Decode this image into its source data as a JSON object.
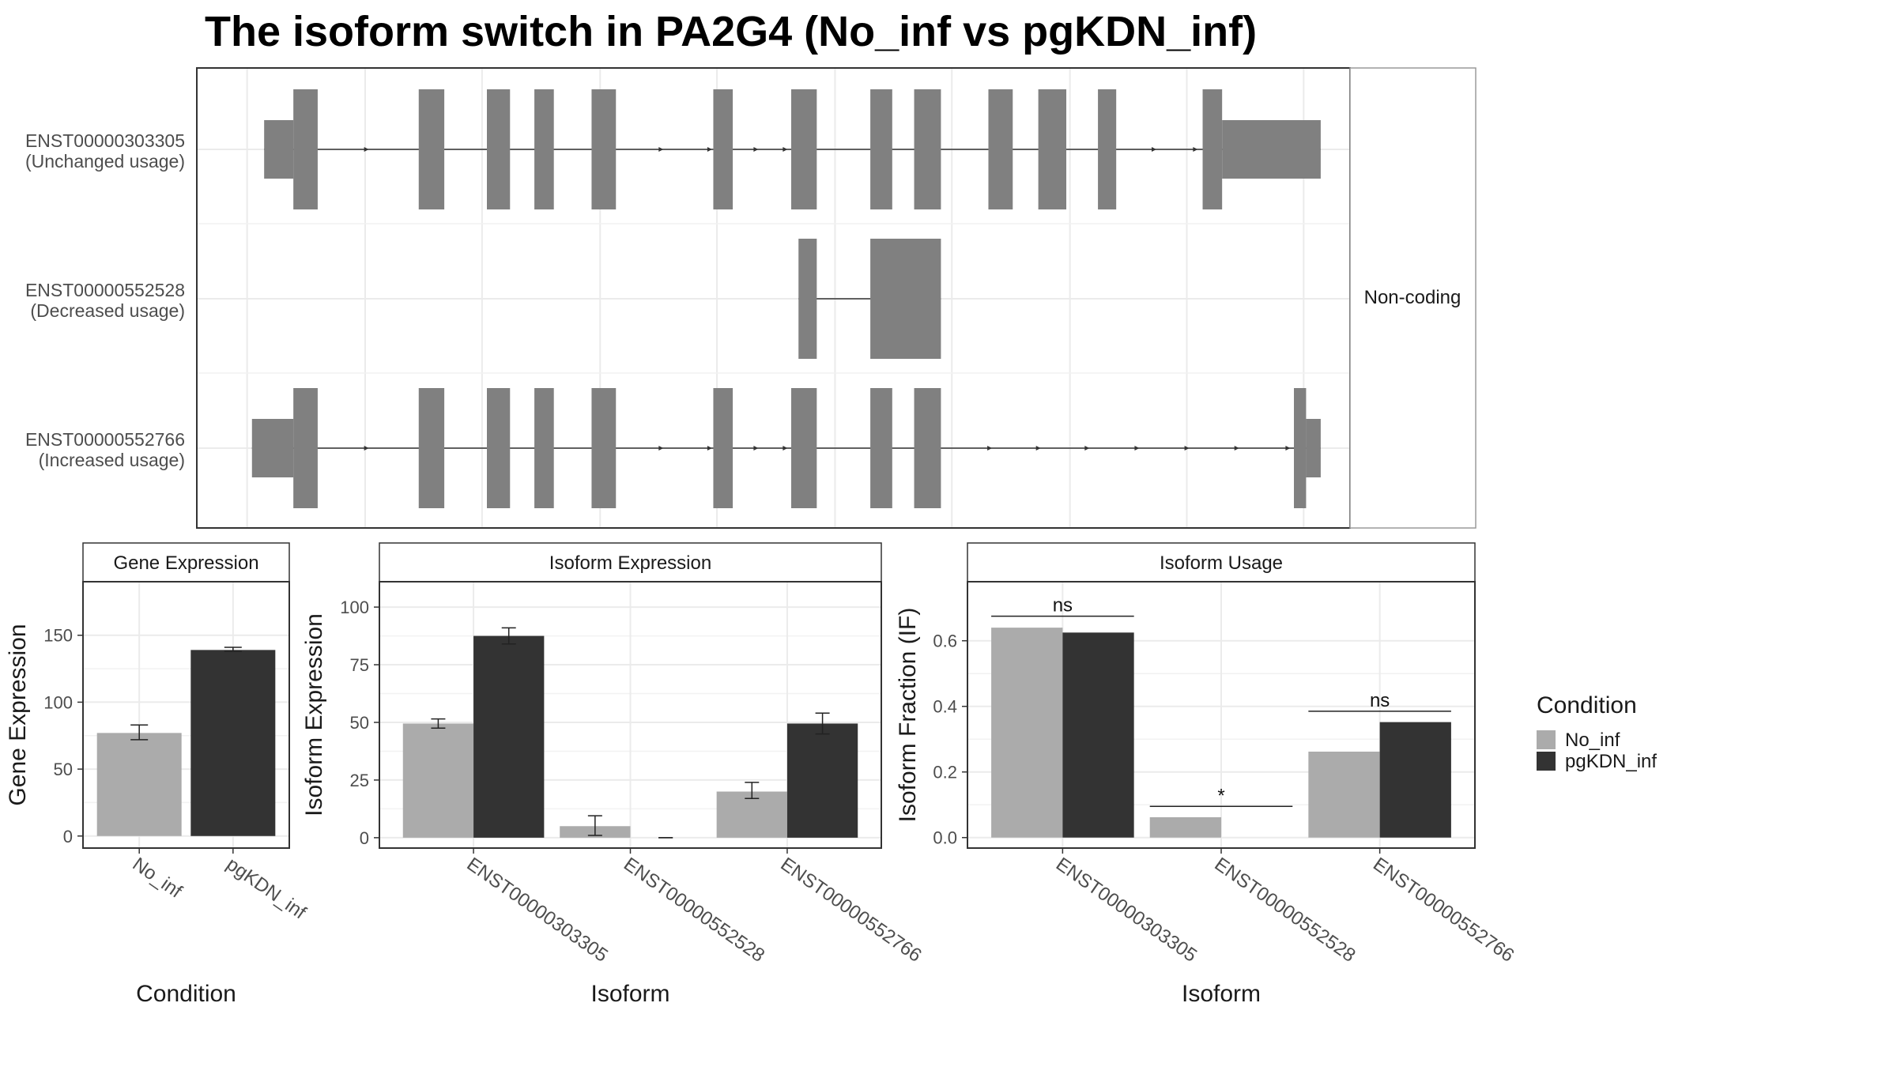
{
  "title": "The isoform switch in PA2G4 (No_inf vs pgKDN_inf)",
  "colors": {
    "No_inf": "#ABABAB",
    "pgKDN_inf": "#333333",
    "exon": "#808080",
    "grid": "#EBEBEB",
    "panel_border": "#333333",
    "strip_bg": "#FFFFFF"
  },
  "structure": {
    "strip_label": "Non-coding",
    "transcripts": [
      {
        "id": "ENST00000303305",
        "usage": "(Unchanged usage)",
        "exons": [
          [
            217,
            241,
            "utr"
          ],
          [
            241,
            261,
            "cds"
          ],
          [
            344,
            365,
            "cds"
          ],
          [
            400,
            419,
            "cds"
          ],
          [
            439,
            455,
            "cds"
          ],
          [
            486,
            506,
            "cds"
          ],
          [
            586,
            602,
            "cds"
          ],
          [
            650,
            671,
            "cds"
          ],
          [
            715,
            733,
            "cds"
          ],
          [
            751,
            773,
            "cds"
          ],
          [
            812,
            832,
            "cds"
          ],
          [
            853,
            876,
            "cds"
          ],
          [
            902,
            917,
            "cds"
          ],
          [
            988,
            1004,
            "cds"
          ],
          [
            1004,
            1085,
            "utr"
          ]
        ],
        "arrows": [
          303,
          545,
          585,
          623,
          647,
          950,
          984
        ]
      },
      {
        "id": "ENST00000552528",
        "usage": "(Decreased usage)",
        "exons": [
          [
            656,
            671,
            "cds"
          ],
          [
            715,
            773,
            "cds"
          ]
        ],
        "arrows": []
      },
      {
        "id": "ENST00000552766",
        "usage": "(Increased usage)",
        "exons": [
          [
            207,
            241,
            "utr"
          ],
          [
            241,
            261,
            "cds"
          ],
          [
            344,
            365,
            "cds"
          ],
          [
            400,
            419,
            "cds"
          ],
          [
            439,
            455,
            "cds"
          ],
          [
            486,
            506,
            "cds"
          ],
          [
            586,
            602,
            "cds"
          ],
          [
            650,
            671,
            "cds"
          ],
          [
            715,
            733,
            "cds"
          ],
          [
            751,
            773,
            "cds"
          ],
          [
            1063,
            1073,
            "cds"
          ],
          [
            1073,
            1085,
            "utr"
          ]
        ],
        "arrows": [
          303,
          545,
          585,
          623,
          647,
          815,
          855,
          895,
          936,
          977,
          1018,
          1060
        ]
      }
    ]
  },
  "chart_data": [
    {
      "type": "bar",
      "panel": "Gene Expression",
      "xlabel": "Condition",
      "ylabel": "Gene Expression",
      "categories": [
        "No_inf",
        "pgKDN_inf"
      ],
      "yticks": [
        0,
        50,
        100,
        150
      ],
      "ylim": [
        -9,
        190
      ],
      "values": [
        77,
        139
      ],
      "errors": [
        [
          72,
          83
        ],
        [
          138,
          141
        ]
      ]
    },
    {
      "type": "bar",
      "panel": "Isoform Expression",
      "xlabel": "Isoform",
      "ylabel": "Isoform Expression",
      "categories": [
        "ENST00000303305",
        "ENST00000552528",
        "ENST00000552766"
      ],
      "yticks": [
        0,
        25,
        50,
        75,
        100
      ],
      "ylim": [
        -4.5,
        111
      ],
      "series": [
        {
          "name": "No_inf",
          "values": [
            49.5,
            5,
            20
          ],
          "errors": [
            [
              47.5,
              51.5
            ],
            [
              1,
              9.5
            ],
            [
              17,
              24
            ]
          ]
        },
        {
          "name": "pgKDN_inf",
          "values": [
            87.5,
            0,
            49.5
          ],
          "errors": [
            [
              84,
              91
            ],
            [
              0,
              0
            ],
            [
              45,
              54
            ]
          ]
        }
      ]
    },
    {
      "type": "bar",
      "panel": "Isoform Usage",
      "xlabel": "Isoform",
      "ylabel": "Isoform Fraction (IF)",
      "categories": [
        "ENST00000303305",
        "ENST00000552528",
        "ENST00000552766"
      ],
      "yticks": [
        0.0,
        0.2,
        0.4,
        0.6
      ],
      "ylim": [
        -0.032,
        0.78
      ],
      "series": [
        {
          "name": "No_inf",
          "values": [
            0.64,
            0.062,
            0.262
          ]
        },
        {
          "name": "pgKDN_inf",
          "values": [
            0.625,
            0,
            0.352
          ]
        }
      ],
      "significance": [
        {
          "label": "ns",
          "y": 0.675
        },
        {
          "label": "*",
          "y": 0.095
        },
        {
          "label": "ns",
          "y": 0.385
        }
      ]
    }
  ],
  "legend": {
    "title": "Condition",
    "items": [
      "No_inf",
      "pgKDN_inf"
    ]
  }
}
